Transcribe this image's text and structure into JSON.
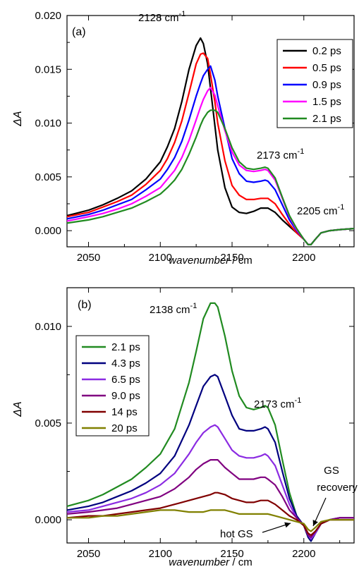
{
  "chart_data": [
    {
      "type": "line",
      "panel_label": "(a)",
      "xlabel": "wavenumber / cm",
      "xlabel_sup": "-1",
      "ylabel": "ΔA",
      "xlim": [
        2035,
        2235
      ],
      "ylim": [
        -0.0015,
        0.02
      ],
      "x_ticks": [
        2050,
        2100,
        2150,
        2200
      ],
      "y_ticks": [
        0.0,
        0.005,
        0.01,
        0.015,
        0.02
      ],
      "y_tick_labels": [
        "0.000",
        "0.005",
        "0.010",
        "0.015",
        "0.020"
      ],
      "legend_position": "top-right",
      "annotations": [
        {
          "text": "2128 cm",
          "sup": "-1",
          "x": 2128,
          "y": 0.0187
        },
        {
          "text": "2173 cm",
          "sup": "-1",
          "x": 2173,
          "y": 0.0067
        },
        {
          "text": "2205 cm",
          "sup": "-1",
          "x": 2205,
          "y": 0.0012
        }
      ],
      "x": [
        2035,
        2050,
        2060,
        2070,
        2080,
        2090,
        2100,
        2105,
        2110,
        2115,
        2120,
        2125,
        2128,
        2130,
        2133,
        2135,
        2138,
        2140,
        2145,
        2150,
        2155,
        2160,
        2165,
        2170,
        2173,
        2175,
        2180,
        2185,
        2190,
        2195,
        2200,
        2203,
        2205,
        2208,
        2212,
        2218,
        2225,
        2235
      ],
      "series": [
        {
          "name": "0.2 ps",
          "color": "#000000",
          "values": [
            0.0014,
            0.0019,
            0.0024,
            0.003,
            0.0037,
            0.0048,
            0.0064,
            0.0078,
            0.0095,
            0.012,
            0.015,
            0.0172,
            0.0179,
            0.0174,
            0.0155,
            0.0132,
            0.0098,
            0.0075,
            0.004,
            0.0022,
            0.0017,
            0.0016,
            0.0018,
            0.0021,
            0.0021,
            0.0021,
            0.0017,
            0.001,
            0.0004,
            -0.0002,
            -0.0008,
            -0.0013,
            -0.0013,
            -0.0008,
            -0.0002,
            0.0,
            0.0001,
            0.0002
          ]
        },
        {
          "name": "0.5 ps",
          "color": "#ff0000",
          "values": [
            0.0013,
            0.0017,
            0.0022,
            0.0027,
            0.0033,
            0.0043,
            0.0056,
            0.0067,
            0.0082,
            0.0102,
            0.0128,
            0.0155,
            0.0164,
            0.0165,
            0.016,
            0.0145,
            0.012,
            0.01,
            0.0065,
            0.0042,
            0.0033,
            0.0029,
            0.0029,
            0.003,
            0.003,
            0.003,
            0.0025,
            0.0015,
            0.0006,
            -0.0002,
            -0.0008,
            -0.0013,
            -0.0013,
            -0.0008,
            -0.0002,
            0.0,
            0.0001,
            0.0002
          ]
        },
        {
          "name": "0.9 ps",
          "color": "#0000ff",
          "values": [
            0.0011,
            0.0015,
            0.0019,
            0.0024,
            0.0029,
            0.0038,
            0.0048,
            0.0057,
            0.0068,
            0.0083,
            0.0103,
            0.0125,
            0.0137,
            0.0144,
            0.015,
            0.0153,
            0.014,
            0.0125,
            0.0095,
            0.0067,
            0.0053,
            0.0046,
            0.0045,
            0.0046,
            0.0047,
            0.0046,
            0.0038,
            0.0024,
            0.001,
            0.0,
            -0.0008,
            -0.0013,
            -0.0013,
            -0.0008,
            -0.0002,
            0.0,
            0.0001,
            0.0002
          ]
        },
        {
          "name": "1.5 ps",
          "color": "#ff00ff",
          "values": [
            0.0009,
            0.0013,
            0.0016,
            0.002,
            0.0025,
            0.0032,
            0.004,
            0.0048,
            0.0056,
            0.0068,
            0.0084,
            0.0103,
            0.0115,
            0.0122,
            0.013,
            0.0133,
            0.0126,
            0.0116,
            0.0093,
            0.0073,
            0.0061,
            0.0056,
            0.0055,
            0.0056,
            0.0057,
            0.0056,
            0.0047,
            0.003,
            0.0013,
            0.0001,
            -0.0008,
            -0.0013,
            -0.0013,
            -0.0008,
            -0.0002,
            0.0,
            0.0001,
            0.0002
          ]
        },
        {
          "name": "2.1 ps",
          "color": "#218b21",
          "values": [
            0.0007,
            0.001,
            0.0013,
            0.0017,
            0.0021,
            0.0027,
            0.0034,
            0.004,
            0.0047,
            0.0057,
            0.0071,
            0.0087,
            0.0098,
            0.0104,
            0.011,
            0.0112,
            0.0112,
            0.011,
            0.0095,
            0.0077,
            0.0064,
            0.0058,
            0.0057,
            0.0058,
            0.0059,
            0.0058,
            0.0049,
            0.0031,
            0.0014,
            0.0002,
            -0.0008,
            -0.0013,
            -0.0013,
            -0.0008,
            -0.0002,
            0.0,
            0.0001,
            0.0002
          ]
        }
      ]
    },
    {
      "type": "line",
      "panel_label": "(b)",
      "xlabel": "wavenumber / cm",
      "xlabel_sup": "-1",
      "ylabel": "ΔA",
      "xlim": [
        2035,
        2235
      ],
      "ylim": [
        -0.0012,
        0.012
      ],
      "x_ticks": [
        2050,
        2100,
        2150,
        2200
      ],
      "y_ticks": [
        0.0,
        0.005,
        0.01
      ],
      "y_tick_labels": [
        "0.000",
        "0.005",
        "0.010"
      ],
      "legend_position": "top-left",
      "annotations": [
        {
          "text": "2138 cm",
          "sup": "-1",
          "x": 2138,
          "y": 0.0115
        },
        {
          "text": "2173 cm",
          "sup": "-1",
          "x": 2173,
          "y": 0.0063
        },
        {
          "text": "GS",
          "x": 2208,
          "y": 0.0031
        },
        {
          "text": "recovery",
          "x": 2208,
          "y": 0.0021
        },
        {
          "text": "hot GS",
          "x": 2180,
          "y": -0.0003
        }
      ],
      "x": [
        2035,
        2050,
        2060,
        2070,
        2080,
        2090,
        2100,
        2110,
        2120,
        2125,
        2130,
        2135,
        2138,
        2140,
        2145,
        2150,
        2155,
        2160,
        2165,
        2170,
        2173,
        2175,
        2180,
        2185,
        2190,
        2195,
        2200,
        2203,
        2205,
        2208,
        2212,
        2218,
        2225,
        2235
      ],
      "series": [
        {
          "name": "2.1 ps",
          "color": "#218b21",
          "values": [
            0.0007,
            0.001,
            0.0013,
            0.0017,
            0.0021,
            0.0027,
            0.0034,
            0.0047,
            0.0071,
            0.0087,
            0.0104,
            0.0112,
            0.0112,
            0.011,
            0.0095,
            0.0077,
            0.0064,
            0.0058,
            0.0057,
            0.0058,
            0.0059,
            0.0058,
            0.0049,
            0.0031,
            0.0014,
            0.0002,
            -0.0003,
            -0.0009,
            -0.0011,
            -0.0007,
            -0.0002,
            0.0,
            0.0001,
            0.0001
          ]
        },
        {
          "name": "4.3 ps",
          "color": "#00007f",
          "values": [
            0.0005,
            0.0007,
            0.0009,
            0.0012,
            0.0015,
            0.0019,
            0.0024,
            0.0033,
            0.0049,
            0.0059,
            0.0069,
            0.0074,
            0.0075,
            0.0074,
            0.0064,
            0.0054,
            0.0047,
            0.0046,
            0.0046,
            0.0047,
            0.0048,
            0.0047,
            0.004,
            0.0025,
            0.0011,
            0.0002,
            -0.0003,
            -0.0009,
            -0.0011,
            -0.0007,
            -0.0002,
            0.0,
            0.0001,
            0.0001
          ]
        },
        {
          "name": "6.5 ps",
          "color": "#8b2be2",
          "values": [
            0.0004,
            0.0005,
            0.0007,
            0.0009,
            0.0011,
            0.0014,
            0.0018,
            0.0024,
            0.0034,
            0.004,
            0.0045,
            0.0048,
            0.0049,
            0.0048,
            0.0042,
            0.0036,
            0.0033,
            0.0032,
            0.0032,
            0.0033,
            0.0034,
            0.0033,
            0.0028,
            0.0018,
            0.0008,
            0.0001,
            -0.0003,
            -0.0008,
            -0.001,
            -0.0007,
            -0.0002,
            0.0,
            0.0001,
            0.0001
          ]
        },
        {
          "name": "9.0 ps",
          "color": "#800080",
          "values": [
            0.0003,
            0.0004,
            0.0005,
            0.0006,
            0.0008,
            0.001,
            0.0012,
            0.0016,
            0.0022,
            0.0026,
            0.0029,
            0.0031,
            0.0031,
            0.0031,
            0.0027,
            0.0024,
            0.0021,
            0.0021,
            0.0021,
            0.0022,
            0.0022,
            0.0021,
            0.0018,
            0.0012,
            0.0005,
            0.0001,
            -0.0003,
            -0.0008,
            -0.0009,
            -0.0006,
            -0.0002,
            0.0,
            0.0001,
            0.0001
          ]
        },
        {
          "name": "14 ps",
          "color": "#800000",
          "values": [
            0.0001,
            0.0002,
            0.0002,
            0.0003,
            0.0004,
            0.0005,
            0.0006,
            0.0008,
            0.001,
            0.0011,
            0.0012,
            0.0013,
            0.0014,
            0.0014,
            0.0013,
            0.0011,
            0.001,
            0.0009,
            0.0009,
            0.001,
            0.001,
            0.001,
            0.0008,
            0.0005,
            0.0002,
            0.0,
            -0.0003,
            -0.0007,
            -0.0008,
            -0.0006,
            -0.0002,
            0.0,
            0.0,
            0.0
          ]
        },
        {
          "name": "20 ps",
          "color": "#808000",
          "values": [
            0.0001,
            0.0001,
            0.0002,
            0.0002,
            0.0003,
            0.0004,
            0.0005,
            0.0005,
            0.0004,
            0.0004,
            0.0004,
            0.0005,
            0.0005,
            0.0005,
            0.0005,
            0.0004,
            0.0003,
            0.0003,
            0.0003,
            0.0003,
            0.0003,
            0.0003,
            0.0002,
            0.0001,
            0.0,
            -0.0001,
            -0.0002,
            -0.0005,
            -0.0006,
            -0.0004,
            -0.0001,
            0.0,
            0.0,
            0.0
          ]
        }
      ]
    }
  ]
}
